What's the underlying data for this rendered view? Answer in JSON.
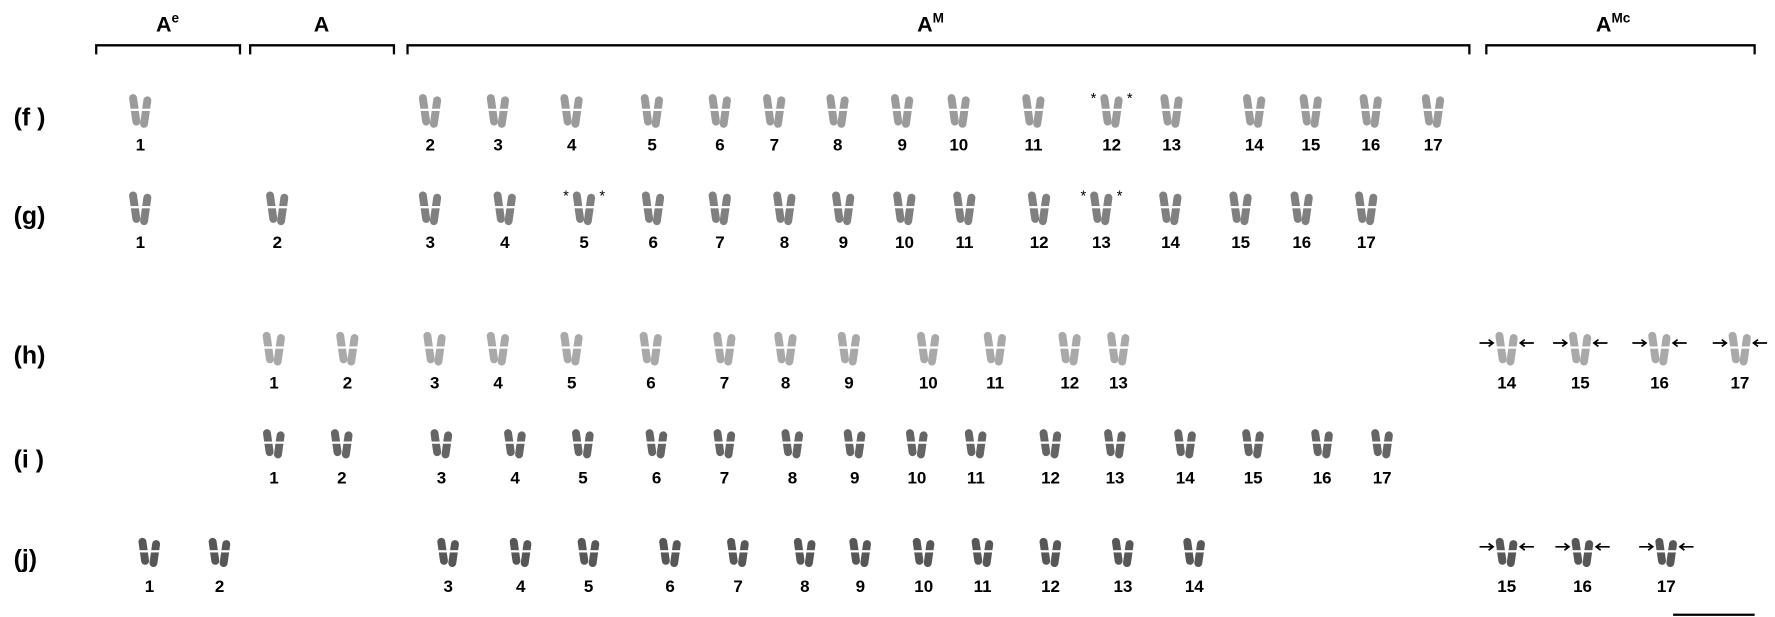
{
  "groups": [
    {
      "base": "A",
      "sup": "e"
    },
    {
      "base": "A"
    },
    {
      "base": "A",
      "sup": "M"
    },
    {
      "base": "A",
      "sup": "Mc"
    }
  ],
  "asterisk": "*",
  "rows": [
    {
      "label": "(f )",
      "numbers": [
        "1",
        "2",
        "3",
        "4",
        "5",
        "6",
        "7",
        "8",
        "9",
        "10",
        "11",
        "12",
        "13",
        "14",
        "15",
        "16",
        "17"
      ]
    },
    {
      "label": "(g)",
      "numbers": [
        "1",
        "2",
        "3",
        "4",
        "5",
        "6",
        "7",
        "8",
        "9",
        "10",
        "11",
        "12",
        "13",
        "14",
        "15",
        "16",
        "17"
      ]
    },
    {
      "label": "(h)",
      "numbers": [
        "1",
        "2",
        "3",
        "4",
        "5",
        "6",
        "7",
        "8",
        "9",
        "10",
        "11",
        "12",
        "13",
        "14",
        "15",
        "16",
        "17"
      ]
    },
    {
      "label": "(i )",
      "numbers": [
        "1",
        "2",
        "3",
        "4",
        "5",
        "6",
        "7",
        "8",
        "9",
        "10",
        "11",
        "12",
        "13",
        "14",
        "15",
        "16",
        "17"
      ]
    },
    {
      "label": "(j)",
      "numbers": [
        "1",
        "2",
        "3",
        "4",
        "5",
        "6",
        "7",
        "8",
        "9",
        "10",
        "11",
        "12",
        "13",
        "14",
        "15",
        "16",
        "17"
      ]
    }
  ]
}
